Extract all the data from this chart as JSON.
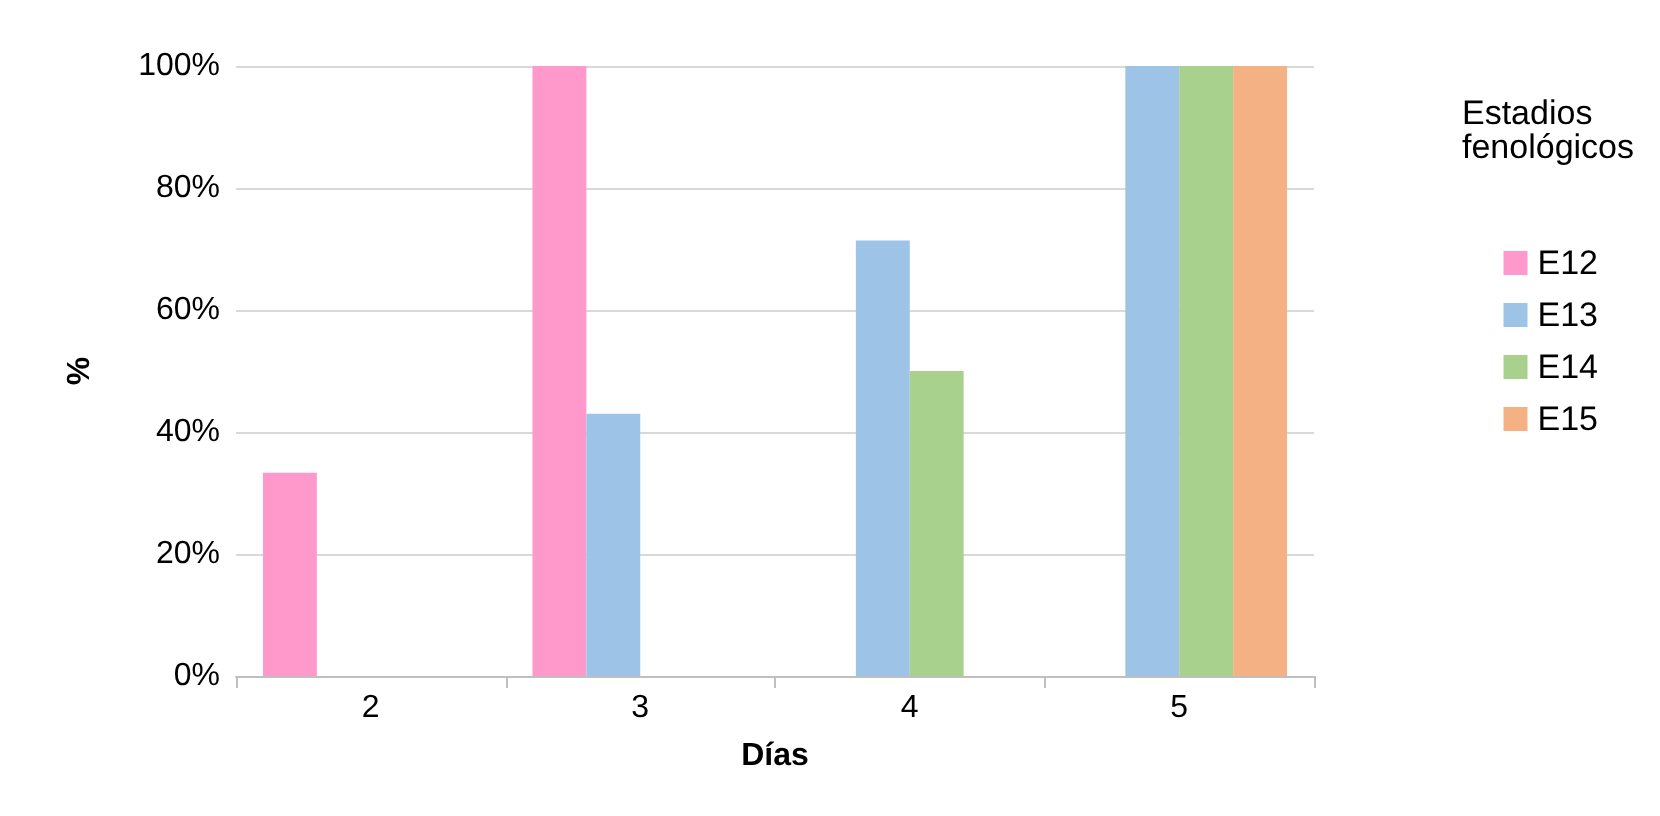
{
  "chart_data": {
    "type": "bar",
    "xlabel": "Días",
    "ylabel": "%",
    "legend_title": "Estadios fenológicos",
    "categories": [
      "2",
      "3",
      "4",
      "5"
    ],
    "series": [
      {
        "name": "E12",
        "color": "#ff99cc",
        "values": [
          33.3,
          100,
          0,
          0
        ]
      },
      {
        "name": "E13",
        "color": "#9dc3e6",
        "values": [
          0,
          43,
          71.4,
          100
        ]
      },
      {
        "name": "E14",
        "color": "#a9d18e",
        "values": [
          0,
          0,
          50,
          100
        ]
      },
      {
        "name": "E15",
        "color": "#f4b183",
        "values": [
          0,
          0,
          0,
          100
        ]
      }
    ],
    "ylim": [
      0,
      100
    ],
    "yticks": [
      {
        "value": 0,
        "label": "0%"
      },
      {
        "value": 20,
        "label": "20%"
      },
      {
        "value": 40,
        "label": "40%"
      },
      {
        "value": 60,
        "label": "60%"
      },
      {
        "value": 80,
        "label": "80%"
      },
      {
        "value": 100,
        "label": "100%"
      }
    ],
    "grid": "y",
    "legend": "right"
  }
}
